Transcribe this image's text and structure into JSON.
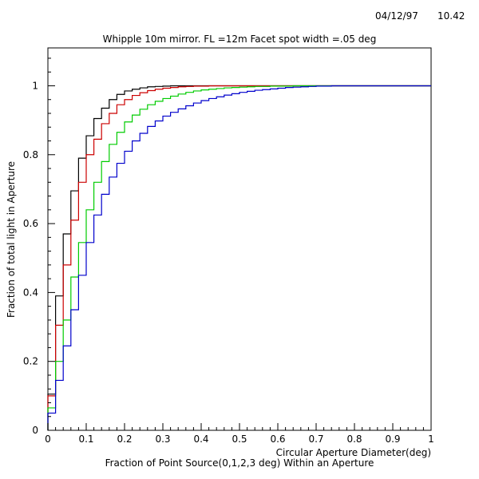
{
  "header": {
    "date": "04/12/97",
    "time": "10.42"
  },
  "chart_data": {
    "type": "line",
    "step": true,
    "title": "Whipple 10m mirror. FL =12m  Facet spot width =.05 deg",
    "xlabel": "Circular Aperture Diameter(deg)",
    "ylabel": "Fraction of total light in Aperture",
    "caption": "Fraction of Point Source(0,1,2,3 deg) Within an Aperture",
    "xlim": [
      0,
      1
    ],
    "ylim": [
      0,
      1.11
    ],
    "x_ticks": [
      0,
      0.1,
      0.2,
      0.3,
      0.4,
      0.5,
      0.6,
      0.7,
      0.8,
      0.9,
      1
    ],
    "x_tick_labels": [
      "0",
      "0.1",
      "0.2",
      "0.3",
      "0.4",
      "0.5",
      "0.6",
      "0.7",
      "0.8",
      "0.9",
      "1"
    ],
    "y_ticks": [
      0,
      0.2,
      0.4,
      0.6,
      0.8,
      1
    ],
    "y_tick_labels": [
      "0",
      "0.2",
      "0.4",
      "0.6",
      "0.8",
      "1"
    ],
    "grid": false,
    "series": [
      {
        "color": "#000000",
        "x": [
          0,
          0.02,
          0.04,
          0.06,
          0.08,
          0.1,
          0.12,
          0.14,
          0.16,
          0.18,
          0.2,
          0.22,
          0.24,
          0.26,
          0.28,
          0.3,
          0.32,
          0.34,
          0.36
        ],
        "y": [
          0.105,
          0.39,
          0.57,
          0.695,
          0.79,
          0.855,
          0.905,
          0.935,
          0.96,
          0.975,
          0.985,
          0.99,
          0.994,
          0.997,
          0.998,
          0.999,
          1.0,
          1.0,
          1.0
        ]
      },
      {
        "color": "#cc0000",
        "x": [
          0,
          0.02,
          0.04,
          0.06,
          0.08,
          0.1,
          0.12,
          0.14,
          0.16,
          0.18,
          0.2,
          0.22,
          0.24,
          0.26,
          0.28,
          0.3,
          0.32,
          0.34,
          0.36,
          0.38,
          0.4,
          0.42,
          0.44,
          0.46,
          0.48,
          0.5,
          0.52,
          0.54,
          0.56,
          0.58
        ],
        "y": [
          0.1,
          0.305,
          0.48,
          0.61,
          0.72,
          0.8,
          0.845,
          0.89,
          0.92,
          0.945,
          0.96,
          0.972,
          0.98,
          0.986,
          0.99,
          0.993,
          0.995,
          0.997,
          0.998,
          0.999,
          0.999,
          1.0,
          1.0,
          1.0,
          1.0,
          1.0,
          1.0,
          1.0,
          1.0,
          1.0
        ]
      },
      {
        "color": "#00cc00",
        "x": [
          0,
          0.02,
          0.04,
          0.06,
          0.08,
          0.1,
          0.12,
          0.14,
          0.16,
          0.18,
          0.2,
          0.22,
          0.24,
          0.26,
          0.28,
          0.3,
          0.32,
          0.34,
          0.36,
          0.38,
          0.4,
          0.42,
          0.44,
          0.46,
          0.48,
          0.5,
          0.52,
          0.54,
          0.56,
          0.58,
          0.6,
          0.62,
          0.64,
          0.66,
          0.68,
          0.7,
          0.72,
          0.74,
          0.76,
          0.78
        ],
        "y": [
          0.065,
          0.2,
          0.32,
          0.445,
          0.545,
          0.64,
          0.72,
          0.78,
          0.83,
          0.865,
          0.895,
          0.915,
          0.932,
          0.945,
          0.955,
          0.963,
          0.97,
          0.976,
          0.981,
          0.985,
          0.988,
          0.99,
          0.992,
          0.994,
          0.995,
          0.996,
          0.997,
          0.998,
          0.998,
          0.999,
          0.999,
          0.999,
          1.0,
          1.0,
          1.0,
          1.0,
          1.0,
          1.0,
          1.0,
          1.0
        ]
      },
      {
        "color": "#0000cc",
        "x": [
          0,
          0.02,
          0.04,
          0.06,
          0.08,
          0.1,
          0.12,
          0.14,
          0.16,
          0.18,
          0.2,
          0.22,
          0.24,
          0.26,
          0.28,
          0.3,
          0.32,
          0.34,
          0.36,
          0.38,
          0.4,
          0.42,
          0.44,
          0.46,
          0.48,
          0.5,
          0.52,
          0.54,
          0.56,
          0.58,
          0.6,
          0.62,
          0.64,
          0.66,
          0.68,
          0.7,
          0.72,
          0.74,
          0.76,
          0.78,
          0.8
        ],
        "y": [
          0.05,
          0.145,
          0.245,
          0.35,
          0.45,
          0.545,
          0.625,
          0.685,
          0.735,
          0.775,
          0.81,
          0.84,
          0.862,
          0.882,
          0.898,
          0.912,
          0.923,
          0.933,
          0.942,
          0.95,
          0.957,
          0.963,
          0.968,
          0.973,
          0.977,
          0.981,
          0.984,
          0.987,
          0.989,
          0.991,
          0.993,
          0.995,
          0.996,
          0.997,
          0.998,
          0.999,
          0.999,
          1.0,
          1.0,
          1.0,
          1.0
        ]
      }
    ]
  }
}
